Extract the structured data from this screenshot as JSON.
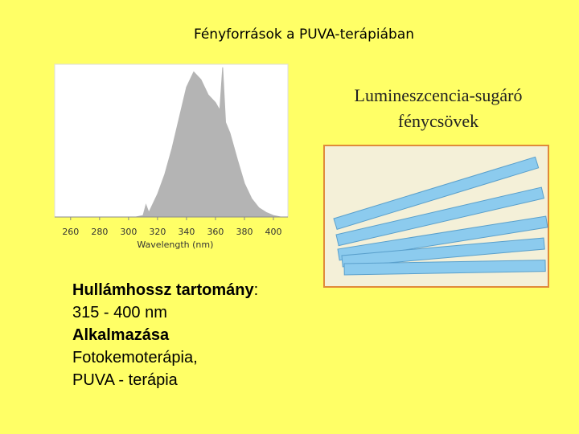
{
  "slide": {
    "title": "Fényforrások a PUVA-terápiában",
    "caption": [
      "Lumineszcencia-sugáró",
      "fénycsövek"
    ],
    "text_block": [
      [
        {
          "text": "Hullámhossz tartomány",
          "bold": true
        },
        {
          "text": ":",
          "bold": false
        }
      ],
      [
        {
          "text": "315 - 400 nm",
          "bold": false
        }
      ],
      [
        {
          "text": "Alkalmazása",
          "bold": true
        }
      ],
      [
        {
          "text": "Fotokemoterápia,",
          "bold": false
        }
      ],
      [
        {
          "text": "PUVA - terápia",
          "bold": false
        }
      ]
    ]
  },
  "chart_data": {
    "type": "area",
    "xlabel": "Wavelength (nm)",
    "color": "#b4b4b4",
    "x": [
      305,
      310,
      312,
      314,
      315,
      320,
      325,
      330,
      335,
      340,
      345,
      350,
      355,
      360,
      363,
      365,
      367,
      370,
      375,
      380,
      385,
      390,
      395,
      400,
      405
    ],
    "values": [
      0,
      1,
      8,
      3,
      5,
      15,
      28,
      45,
      65,
      85,
      95,
      90,
      80,
      75,
      70,
      98,
      62,
      55,
      38,
      22,
      12,
      6,
      3,
      1,
      0
    ],
    "xlim": [
      249,
      410
    ],
    "ylim": [
      0,
      100
    ],
    "xticks": [
      260,
      280,
      300,
      320,
      340,
      360,
      380,
      400
    ]
  }
}
